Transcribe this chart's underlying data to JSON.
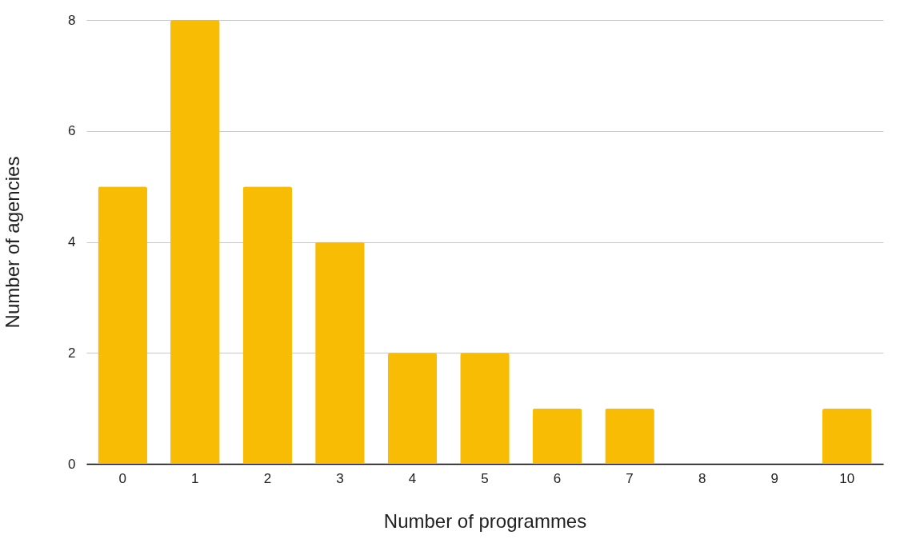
{
  "chart_data": {
    "type": "bar",
    "xlabel": "Number of programmes",
    "ylabel": "Number of agencies",
    "categories": [
      "0",
      "1",
      "2",
      "3",
      "4",
      "5",
      "6",
      "7",
      "8",
      "9",
      "10"
    ],
    "values": [
      5,
      8,
      5,
      4,
      2,
      2,
      1,
      1,
      0,
      0,
      1
    ],
    "color": "#f9bc04",
    "ylim": [
      0,
      8
    ],
    "yticks": [
      0,
      2,
      4,
      6,
      8
    ],
    "grid": "y"
  }
}
